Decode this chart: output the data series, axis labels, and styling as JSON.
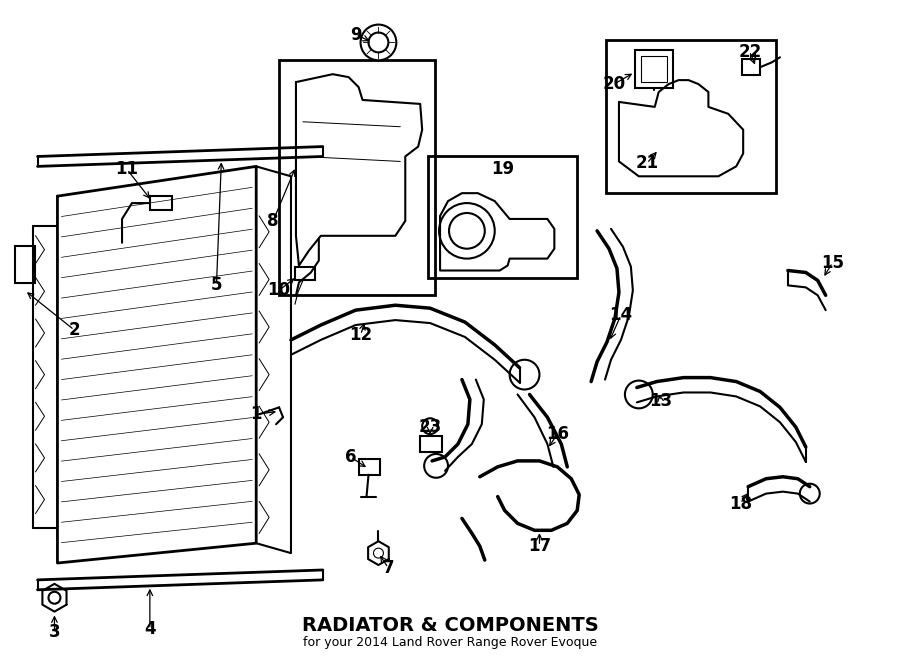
{
  "title": "RADIATOR & COMPONENTS",
  "subtitle": "for your 2014 Land Rover Range Rover Evoque",
  "bg_color": "#ffffff",
  "line_color": "#000000",
  "text_color": "#000000",
  "fig_width": 9.0,
  "fig_height": 6.61,
  "dpi": 100
}
